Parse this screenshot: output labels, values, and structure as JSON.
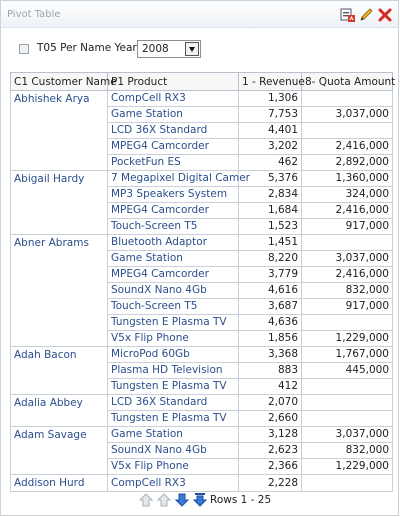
{
  "panel": {
    "title": "Pivot Table",
    "icons": [
      "print-icon",
      "edit-pencil-icon",
      "close-icon"
    ]
  },
  "prompt": {
    "label": "T05 Per Name Year",
    "value": "2008"
  },
  "table": {
    "headers": [
      "C1 Customer Name",
      "P1 Product",
      "1 - Revenue",
      "8- Quota Amount"
    ],
    "groups": [
      {
        "customer": "Abhishek Arya",
        "rows": [
          {
            "product": "CompCell RX3",
            "revenue": "1,306",
            "quota": ""
          },
          {
            "product": "Game Station",
            "revenue": "7,753",
            "quota": "3,037,000"
          },
          {
            "product": "LCD 36X Standard",
            "revenue": "4,401",
            "quota": ""
          },
          {
            "product": "MPEG4 Camcorder",
            "revenue": "3,202",
            "quota": "2,416,000"
          },
          {
            "product": "PocketFun ES",
            "revenue": "462",
            "quota": "2,892,000"
          }
        ]
      },
      {
        "customer": "Abigail Hardy",
        "rows": [
          {
            "product": "7 Megapixel Digital Camer",
            "revenue": "5,376",
            "quota": "1,360,000"
          },
          {
            "product": "MP3 Speakers System",
            "revenue": "2,834",
            "quota": "324,000"
          },
          {
            "product": "MPEG4 Camcorder",
            "revenue": "1,684",
            "quota": "2,416,000"
          },
          {
            "product": "Touch-Screen T5",
            "revenue": "1,523",
            "quota": "917,000"
          }
        ]
      },
      {
        "customer": "Abner Abrams",
        "rows": [
          {
            "product": "Bluetooth Adaptor",
            "revenue": "1,451",
            "quota": ""
          },
          {
            "product": "Game Station",
            "revenue": "8,220",
            "quota": "3,037,000"
          },
          {
            "product": "MPEG4 Camcorder",
            "revenue": "3,779",
            "quota": "2,416,000"
          },
          {
            "product": "SoundX Nano 4Gb",
            "revenue": "4,616",
            "quota": "832,000"
          },
          {
            "product": "Touch-Screen T5",
            "revenue": "3,687",
            "quota": "917,000"
          },
          {
            "product": "Tungsten E Plasma TV",
            "revenue": "4,636",
            "quota": ""
          },
          {
            "product": "V5x Flip Phone",
            "revenue": "1,856",
            "quota": "1,229,000"
          }
        ]
      },
      {
        "customer": "Adah Bacon",
        "rows": [
          {
            "product": "MicroPod 60Gb",
            "revenue": "3,368",
            "quota": "1,767,000"
          },
          {
            "product": "Plasma HD Television",
            "revenue": "883",
            "quota": "445,000"
          },
          {
            "product": "Tungsten E Plasma TV",
            "revenue": "412",
            "quota": ""
          }
        ]
      },
      {
        "customer": "Adalia Abbey",
        "rows": [
          {
            "product": "LCD 36X Standard",
            "revenue": "2,070",
            "quota": ""
          },
          {
            "product": "Tungsten E Plasma TV",
            "revenue": "2,660",
            "quota": ""
          }
        ]
      },
      {
        "customer": "Adam Savage",
        "rows": [
          {
            "product": "Game Station",
            "revenue": "3,128",
            "quota": "3,037,000"
          },
          {
            "product": "SoundX Nano 4Gb",
            "revenue": "2,623",
            "quota": "832,000"
          },
          {
            "product": "V5x Flip Phone",
            "revenue": "2,366",
            "quota": "1,229,000"
          }
        ]
      },
      {
        "customer": "Addison Hurd",
        "rows": [
          {
            "product": "CompCell RX3",
            "revenue": "2,228",
            "quota": ""
          }
        ]
      }
    ]
  },
  "pager": {
    "rows_label": "Rows 1 - 25",
    "icons": [
      "first-page-icon",
      "previous-page-icon",
      "next-page-icon",
      "last-page-icon"
    ]
  }
}
